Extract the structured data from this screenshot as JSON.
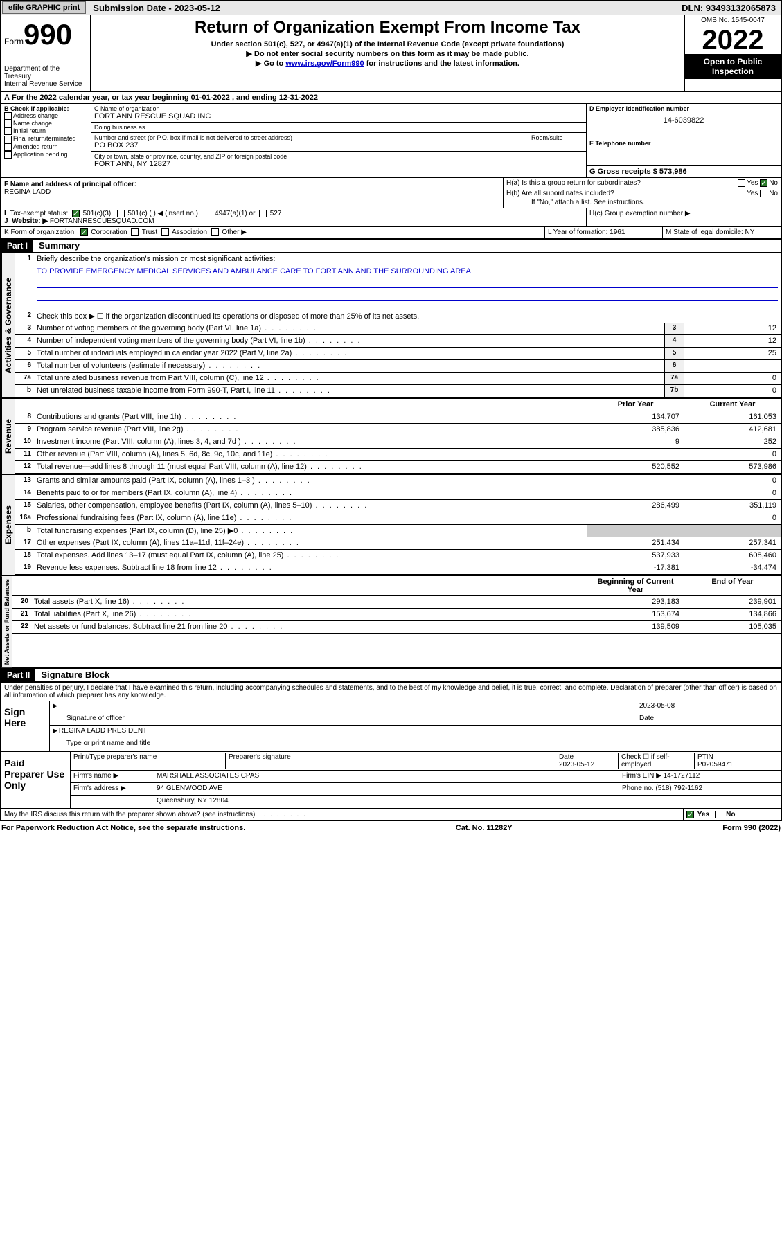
{
  "topbar": {
    "efile": "efile GRAPHIC print",
    "submission_label": "Submission Date - 2023-05-12",
    "dln": "DLN: 93493132065873"
  },
  "header": {
    "form_word": "Form",
    "form_num": "990",
    "dept": "Department of the Treasury",
    "irs": "Internal Revenue Service",
    "title": "Return of Organization Exempt From Income Tax",
    "sub1": "Under section 501(c), 527, or 4947(a)(1) of the Internal Revenue Code (except private foundations)",
    "sub2": "▶ Do not enter social security numbers on this form as it may be made public.",
    "sub3a": "▶ Go to ",
    "sub3_link": "www.irs.gov/Form990",
    "sub3b": " for instructions and the latest information.",
    "omb": "OMB No. 1545-0047",
    "year": "2022",
    "open": "Open to Public Inspection"
  },
  "period": {
    "line": "For the 2022 calendar year, or tax year beginning 01-01-2022    , and ending 12-31-2022"
  },
  "boxB": {
    "header": "B Check if applicable:",
    "items": [
      "Address change",
      "Name change",
      "Initial return",
      "Final return/terminated",
      "Amended return",
      "Application pending"
    ]
  },
  "boxC": {
    "name_lbl": "C Name of organization",
    "name": "FORT ANN RESCUE SQUAD INC",
    "dba_lbl": "Doing business as",
    "dba": "",
    "addr_lbl": "Number and street (or P.O. box if mail is not delivered to street address)",
    "room_lbl": "Room/suite",
    "addr": "PO BOX 237",
    "city_lbl": "City or town, state or province, country, and ZIP or foreign postal code",
    "city": "FORT ANN, NY  12827"
  },
  "boxD": {
    "lbl": "D Employer identification number",
    "val": "14-6039822"
  },
  "boxE": {
    "lbl": "E Telephone number",
    "val": ""
  },
  "boxG": {
    "lbl": "G Gross receipts $ 573,986"
  },
  "boxF": {
    "lbl": "F  Name and address of principal officer:",
    "val": "REGINA LADD"
  },
  "boxH": {
    "ha": "H(a)  Is this a group return for subordinates?",
    "hb": "H(b)  Are all subordinates included?",
    "hb_note": "If \"No,\" attach a list. See instructions.",
    "hc": "H(c)  Group exemption number ▶"
  },
  "boxI": {
    "lbl": "Tax-exempt status:",
    "opts": [
      "501(c)(3)",
      "501(c) (  ) ◀ (insert no.)",
      "4947(a)(1) or",
      "527"
    ]
  },
  "boxJ": {
    "lbl": "Website: ▶",
    "val": "FORTANNRESCUESQUAD.COM"
  },
  "boxK": {
    "lbl": "K Form of organization:",
    "opts": [
      "Corporation",
      "Trust",
      "Association",
      "Other ▶"
    ]
  },
  "boxL": {
    "lbl": "L Year of formation: 1961"
  },
  "boxM": {
    "lbl": "M State of legal domicile: NY"
  },
  "part1": {
    "hdr": "Part I",
    "title": "Summary",
    "q1": "Briefly describe the organization's mission or most significant activities:",
    "q1_ans": "TO PROVIDE EMERGENCY MEDICAL SERVICES AND AMBULANCE CARE TO FORT ANN AND THE SURROUNDING AREA",
    "q2": "Check this box ▶ ☐  if the organization discontinued its operations or disposed of more than 25% of its net assets.",
    "lines_gov": [
      {
        "n": "3",
        "t": "Number of voting members of the governing body (Part VI, line 1a)",
        "box": "3",
        "v": "12"
      },
      {
        "n": "4",
        "t": "Number of independent voting members of the governing body (Part VI, line 1b)",
        "box": "4",
        "v": "12"
      },
      {
        "n": "5",
        "t": "Total number of individuals employed in calendar year 2022 (Part V, line 2a)",
        "box": "5",
        "v": "25"
      },
      {
        "n": "6",
        "t": "Total number of volunteers (estimate if necessary)",
        "box": "6",
        "v": ""
      },
      {
        "n": "7a",
        "t": "Total unrelated business revenue from Part VIII, column (C), line 12",
        "box": "7a",
        "v": "0"
      },
      {
        "n": "b",
        "t": "Net unrelated business taxable income from Form 990-T, Part I, line 11",
        "box": "7b",
        "v": "0"
      }
    ],
    "col_prior": "Prior Year",
    "col_curr": "Current Year",
    "lines_rev": [
      {
        "n": "8",
        "t": "Contributions and grants (Part VIII, line 1h)",
        "p": "134,707",
        "c": "161,053"
      },
      {
        "n": "9",
        "t": "Program service revenue (Part VIII, line 2g)",
        "p": "385,836",
        "c": "412,681"
      },
      {
        "n": "10",
        "t": "Investment income (Part VIII, column (A), lines 3, 4, and 7d )",
        "p": "9",
        "c": "252"
      },
      {
        "n": "11",
        "t": "Other revenue (Part VIII, column (A), lines 5, 6d, 8c, 9c, 10c, and 11e)",
        "p": "",
        "c": "0"
      },
      {
        "n": "12",
        "t": "Total revenue—add lines 8 through 11 (must equal Part VIII, column (A), line 12)",
        "p": "520,552",
        "c": "573,986"
      }
    ],
    "lines_exp": [
      {
        "n": "13",
        "t": "Grants and similar amounts paid (Part IX, column (A), lines 1–3 )",
        "p": "",
        "c": "0"
      },
      {
        "n": "14",
        "t": "Benefits paid to or for members (Part IX, column (A), line 4)",
        "p": "",
        "c": "0"
      },
      {
        "n": "15",
        "t": "Salaries, other compensation, employee benefits (Part IX, column (A), lines 5–10)",
        "p": "286,499",
        "c": "351,119"
      },
      {
        "n": "16a",
        "t": "Professional fundraising fees (Part IX, column (A), line 11e)",
        "p": "",
        "c": "0"
      },
      {
        "n": "b",
        "t": "Total fundraising expenses (Part IX, column (D), line 25) ▶0",
        "p": "shade",
        "c": "shade"
      },
      {
        "n": "17",
        "t": "Other expenses (Part IX, column (A), lines 11a–11d, 11f–24e)",
        "p": "251,434",
        "c": "257,341"
      },
      {
        "n": "18",
        "t": "Total expenses. Add lines 13–17 (must equal Part IX, column (A), line 25)",
        "p": "537,933",
        "c": "608,460"
      },
      {
        "n": "19",
        "t": "Revenue less expenses. Subtract line 18 from line 12",
        "p": "-17,381",
        "c": "-34,474"
      }
    ],
    "col_beg": "Beginning of Current Year",
    "col_end": "End of Year",
    "lines_net": [
      {
        "n": "20",
        "t": "Total assets (Part X, line 16)",
        "p": "293,183",
        "c": "239,901"
      },
      {
        "n": "21",
        "t": "Total liabilities (Part X, line 26)",
        "p": "153,674",
        "c": "134,866"
      },
      {
        "n": "22",
        "t": "Net assets or fund balances. Subtract line 21 from line 20",
        "p": "139,509",
        "c": "105,035"
      }
    ],
    "side_gov": "Activities & Governance",
    "side_rev": "Revenue",
    "side_exp": "Expenses",
    "side_net": "Net Assets or Fund Balances"
  },
  "part2": {
    "hdr": "Part II",
    "title": "Signature Block",
    "decl": "Under penalties of perjury, I declare that I have examined this return, including accompanying schedules and statements, and to the best of my knowledge and belief, it is true, correct, and complete. Declaration of preparer (other than officer) is based on all information of which preparer has any knowledge.",
    "sign_here": "Sign Here",
    "sig_officer": "Signature of officer",
    "sig_date": "Date",
    "sig_date_val": "2023-05-08",
    "sig_name": "REGINA LADD  PRESIDENT",
    "sig_name_lbl": "Type or print name and title",
    "paid": "Paid Preparer Use Only",
    "prep_name_lbl": "Print/Type preparer's name",
    "prep_sig_lbl": "Preparer's signature",
    "prep_date_lbl": "Date",
    "prep_date": "2023-05-12",
    "prep_check": "Check ☐ if self-employed",
    "ptin_lbl": "PTIN",
    "ptin": "P02059471",
    "firm_name_lbl": "Firm's name    ▶",
    "firm_name": "MARSHALL ASSOCIATES CPAS",
    "firm_ein_lbl": "Firm's EIN ▶",
    "firm_ein": "14-1727112",
    "firm_addr_lbl": "Firm's address ▶",
    "firm_addr1": "94 GLENWOOD AVE",
    "firm_addr2": "Queensbury, NY  12804",
    "phone_lbl": "Phone no.",
    "phone": "(518) 792-1162",
    "may_irs": "May the IRS discuss this return with the preparer shown above? (see instructions)",
    "yes": "Yes",
    "no": "No"
  },
  "footer": {
    "left": "For Paperwork Reduction Act Notice, see the separate instructions.",
    "mid": "Cat. No. 11282Y",
    "right": "Form 990 (2022)"
  },
  "colors": {
    "bg": "#ffffff",
    "text": "#000000",
    "link": "#0000cc",
    "shade": "#cccccc",
    "check_green": "#2a7a2a"
  }
}
